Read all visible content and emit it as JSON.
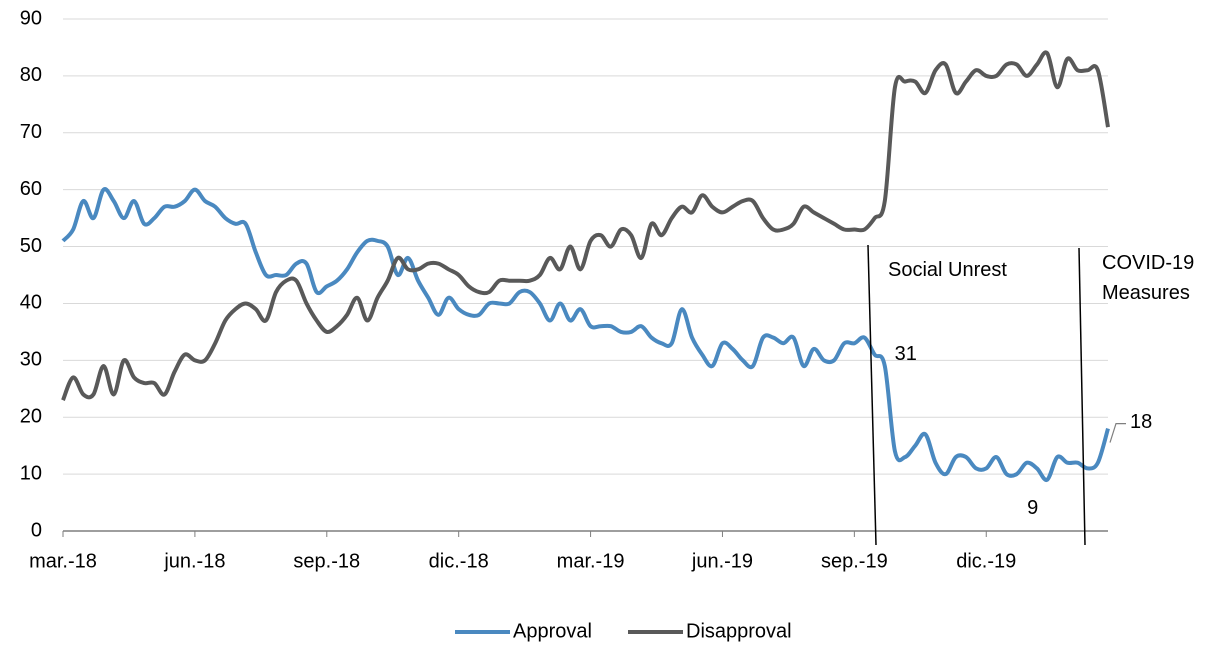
{
  "chart_data": {
    "type": "line",
    "categories": [
      "mar.-18",
      null,
      null,
      null,
      null,
      null,
      null,
      null,
      null,
      null,
      null,
      null,
      null,
      "jun.-18",
      null,
      null,
      null,
      null,
      null,
      null,
      null,
      null,
      null,
      null,
      null,
      null,
      "sep.-18",
      null,
      null,
      null,
      null,
      null,
      null,
      null,
      null,
      null,
      null,
      null,
      null,
      "dic.-18",
      null,
      null,
      null,
      null,
      null,
      null,
      null,
      null,
      null,
      null,
      null,
      null,
      "mar.-19",
      null,
      null,
      null,
      null,
      null,
      null,
      null,
      null,
      null,
      null,
      null,
      null,
      "jun.-19",
      null,
      null,
      null,
      null,
      null,
      null,
      null,
      null,
      null,
      null,
      null,
      null,
      "sep.-19",
      null,
      null,
      null,
      null,
      null,
      null,
      null,
      null,
      null,
      null,
      null,
      null,
      "dic.-19",
      null,
      null,
      null,
      null,
      null,
      null,
      null,
      null,
      null,
      null,
      null,
      null
    ],
    "series": [
      {
        "name": "Approval",
        "color": "#4a89c0",
        "values": [
          51,
          53,
          58,
          55,
          60,
          58,
          55,
          58,
          54,
          55,
          57,
          57,
          58,
          60,
          58,
          57,
          55,
          54,
          54,
          49,
          45,
          45,
          45,
          47,
          47,
          42,
          43,
          44,
          46,
          49,
          51,
          51,
          50,
          45,
          48,
          44,
          41,
          38,
          41,
          39,
          38,
          38,
          40,
          40,
          40,
          42,
          42,
          40,
          37,
          40,
          37,
          39,
          36,
          36,
          36,
          35,
          35,
          36,
          34,
          33,
          33,
          39,
          34,
          31,
          29,
          33,
          32,
          30,
          29,
          34,
          34,
          33,
          34,
          29,
          32,
          30,
          30,
          33,
          33,
          34,
          31,
          29,
          14,
          13,
          15,
          17,
          12,
          10,
          13,
          13,
          11,
          11,
          13,
          10,
          10,
          12,
          11,
          9,
          13,
          12,
          12,
          11,
          12,
          18
        ]
      },
      {
        "name": "Disapproval",
        "color": "#595959",
        "values": [
          23,
          27,
          24,
          24,
          29,
          24,
          30,
          27,
          26,
          26,
          24,
          28,
          31,
          30,
          30,
          33,
          37,
          39,
          40,
          39,
          37,
          42,
          44,
          44,
          40,
          37,
          35,
          36,
          38,
          41,
          37,
          41,
          44,
          48,
          46,
          46,
          47,
          47,
          46,
          45,
          43,
          42,
          42,
          44,
          44,
          44,
          44,
          45,
          48,
          46,
          50,
          46,
          51,
          52,
          50,
          53,
          52,
          48,
          54,
          52,
          55,
          57,
          56,
          59,
          57,
          56,
          57,
          58,
          58,
          55,
          53,
          53,
          54,
          57,
          56,
          55,
          54,
          53,
          53,
          53,
          55,
          58,
          78,
          79,
          79,
          77,
          81,
          82,
          77,
          79,
          81,
          80,
          80,
          82,
          82,
          80,
          82,
          84,
          78,
          83,
          81,
          81,
          81,
          71
        ]
      }
    ],
    "annotations": [
      "Social Unrest",
      "COVID-19 Measures"
    ],
    "ylim": [
      0,
      90
    ],
    "yticks": [
      0,
      10,
      20,
      30,
      40,
      50,
      60,
      70,
      80,
      90
    ],
    "grid": true,
    "legend": "bottom"
  }
}
